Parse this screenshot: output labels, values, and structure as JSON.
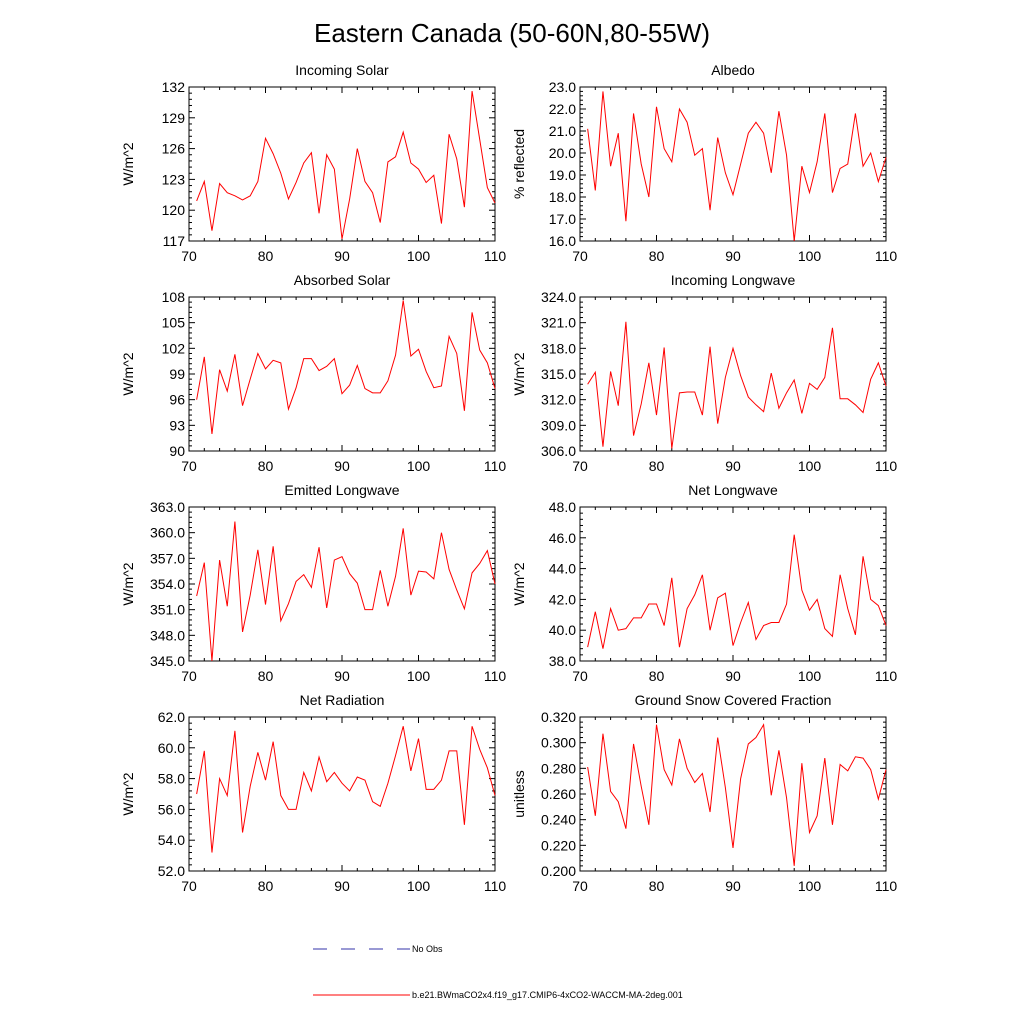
{
  "title": "Eastern Canada (50-60N,80-55W)",
  "colors": {
    "model": "#ff0000",
    "obs": "#3333aa",
    "axis": "#000000"
  },
  "legend": {
    "obs_label": "No Obs",
    "model_label": "b.e21.BWmaCO2x4.f19_g17.CMIP6-4xCO2-WACCM-MA-2deg.001"
  },
  "chart_data": [
    {
      "type": "line",
      "title": "Incoming Solar",
      "xlabel": "",
      "ylabel": "W/m^2",
      "xlim": [
        70,
        110
      ],
      "ylim": [
        117,
        132
      ],
      "xticks": [
        70,
        80,
        90,
        100,
        110
      ],
      "yticks": [
        117,
        120,
        123,
        126,
        129,
        132
      ],
      "ytick_labels": [
        "117",
        "120",
        "123",
        "126",
        "129",
        "132"
      ],
      "x": [
        71,
        72,
        73,
        74,
        75,
        76,
        77,
        78,
        79,
        80,
        81,
        82,
        83,
        84,
        85,
        86,
        87,
        88,
        89,
        90,
        91,
        92,
        93,
        94,
        95,
        96,
        97,
        98,
        99,
        100,
        101,
        102,
        103,
        104,
        105,
        106,
        107,
        108,
        109,
        110
      ],
      "series": [
        {
          "name": "b.e21.BWmaCO2x4.f19_g17.CMIP6-4xCO2-WACCM-MA-2deg.001",
          "values": [
            120.9,
            122.8,
            118.0,
            122.6,
            121.7,
            121.4,
            121.0,
            121.4,
            122.8,
            127.0,
            125.5,
            123.6,
            121.1,
            122.7,
            124.6,
            125.6,
            119.7,
            125.4,
            124.0,
            117.2,
            121.1,
            126.0,
            122.8,
            121.7,
            118.8,
            124.7,
            125.2,
            127.6,
            124.6,
            124.0,
            122.7,
            123.4,
            118.7,
            127.4,
            125.0,
            120.3,
            131.6,
            126.9,
            122.2,
            120.7
          ]
        }
      ]
    },
    {
      "type": "line",
      "title": "Albedo",
      "xlabel": "",
      "ylabel": "% reflected",
      "xlim": [
        70,
        110
      ],
      "ylim": [
        16,
        23
      ],
      "xticks": [
        70,
        80,
        90,
        100,
        110
      ],
      "yticks": [
        16,
        17,
        18,
        19,
        20,
        21,
        22,
        23
      ],
      "ytick_labels": [
        "16.0",
        "17.0",
        "18.0",
        "19.0",
        "20.0",
        "21.0",
        "22.0",
        "23.0"
      ],
      "x": [
        71,
        72,
        73,
        74,
        75,
        76,
        77,
        78,
        79,
        80,
        81,
        82,
        83,
        84,
        85,
        86,
        87,
        88,
        89,
        90,
        91,
        92,
        93,
        94,
        95,
        96,
        97,
        98,
        99,
        100,
        101,
        102,
        103,
        104,
        105,
        106,
        107,
        108,
        109,
        110
      ],
      "series": [
        {
          "name": "b.e21.BWmaCO2x4.f19_g17.CMIP6-4xCO2-WACCM-MA-2deg.001",
          "values": [
            21.1,
            18.3,
            22.8,
            19.4,
            20.9,
            16.9,
            21.8,
            19.5,
            18.0,
            22.1,
            20.2,
            19.6,
            22.0,
            21.4,
            19.9,
            20.2,
            17.4,
            20.7,
            19.1,
            18.1,
            19.5,
            20.9,
            21.4,
            20.9,
            19.1,
            21.9,
            19.9,
            16.0,
            19.4,
            18.2,
            19.6,
            21.8,
            18.2,
            19.3,
            19.5,
            21.8,
            19.4,
            20.0,
            18.7,
            19.8
          ]
        }
      ]
    },
    {
      "type": "line",
      "title": "Absorbed Solar",
      "xlabel": "",
      "ylabel": "W/m^2",
      "xlim": [
        70,
        110
      ],
      "ylim": [
        90,
        108
      ],
      "xticks": [
        70,
        80,
        90,
        100,
        110
      ],
      "yticks": [
        90,
        93,
        96,
        99,
        102,
        105,
        108
      ],
      "ytick_labels": [
        "90",
        "93",
        "96",
        "99",
        "102",
        "105",
        "108"
      ],
      "x": [
        71,
        72,
        73,
        74,
        75,
        76,
        77,
        78,
        79,
        80,
        81,
        82,
        83,
        84,
        85,
        86,
        87,
        88,
        89,
        90,
        91,
        92,
        93,
        94,
        95,
        96,
        97,
        98,
        99,
        100,
        101,
        102,
        103,
        104,
        105,
        106,
        107,
        108,
        109,
        110
      ],
      "series": [
        {
          "name": "b.e21.BWmaCO2x4.f19_g17.CMIP6-4xCO2-WACCM-MA-2deg.001",
          "values": [
            96.0,
            101.0,
            92.0,
            99.5,
            97.0,
            101.3,
            95.3,
            98.4,
            101.4,
            99.6,
            100.6,
            100.3,
            94.9,
            97.4,
            100.8,
            100.8,
            99.4,
            99.9,
            100.8,
            96.7,
            97.7,
            100.0,
            97.3,
            96.8,
            96.8,
            98.2,
            101.2,
            107.6,
            101.1,
            101.9,
            99.3,
            97.4,
            97.6,
            103.4,
            101.4,
            94.7,
            106.2,
            101.8,
            100.3,
            97.3
          ]
        }
      ]
    },
    {
      "type": "line",
      "title": "Incoming Longwave",
      "xlabel": "",
      "ylabel": "W/m^2",
      "xlim": [
        70,
        110
      ],
      "ylim": [
        306,
        324
      ],
      "xticks": [
        70,
        80,
        90,
        100,
        110
      ],
      "yticks": [
        306,
        309,
        312,
        315,
        318,
        321,
        324
      ],
      "ytick_labels": [
        "306.0",
        "309.0",
        "312.0",
        "315.0",
        "318.0",
        "321.0",
        "324.0"
      ],
      "x": [
        71,
        72,
        73,
        74,
        75,
        76,
        77,
        78,
        79,
        80,
        81,
        82,
        83,
        84,
        85,
        86,
        87,
        88,
        89,
        90,
        91,
        92,
        93,
        94,
        95,
        96,
        97,
        98,
        99,
        100,
        101,
        102,
        103,
        104,
        105,
        106,
        107,
        108,
        109,
        110
      ],
      "series": [
        {
          "name": "b.e21.BWmaCO2x4.f19_g17.CMIP6-4xCO2-WACCM-MA-2deg.001",
          "values": [
            313.8,
            315.2,
            306.5,
            315.3,
            311.3,
            321.1,
            307.8,
            311.5,
            316.3,
            310.2,
            318.1,
            306.3,
            312.8,
            312.9,
            312.9,
            310.2,
            318.2,
            309.2,
            314.6,
            318.0,
            314.8,
            312.3,
            311.4,
            310.6,
            315.1,
            311.0,
            312.8,
            314.3,
            310.4,
            313.9,
            313.2,
            314.6,
            320.4,
            312.1,
            312.1,
            311.4,
            310.5,
            314.4,
            316.3,
            313.6
          ]
        }
      ]
    },
    {
      "type": "line",
      "title": "Emitted Longwave",
      "xlabel": "",
      "ylabel": "W/m^2",
      "xlim": [
        70,
        110
      ],
      "ylim": [
        345,
        363
      ],
      "xticks": [
        70,
        80,
        90,
        100,
        110
      ],
      "yticks": [
        345,
        348,
        351,
        354,
        357,
        360,
        363
      ],
      "ytick_labels": [
        "345.0",
        "348.0",
        "351.0",
        "354.0",
        "357.0",
        "360.0",
        "363.0"
      ],
      "x": [
        71,
        72,
        73,
        74,
        75,
        76,
        77,
        78,
        79,
        80,
        81,
        82,
        83,
        84,
        85,
        86,
        87,
        88,
        89,
        90,
        91,
        92,
        93,
        94,
        95,
        96,
        97,
        98,
        99,
        100,
        101,
        102,
        103,
        104,
        105,
        106,
        107,
        108,
        109,
        110
      ],
      "series": [
        {
          "name": "b.e21.BWmaCO2x4.f19_g17.CMIP6-4xCO2-WACCM-MA-2deg.001",
          "values": [
            352.6,
            356.5,
            345.0,
            356.8,
            351.4,
            361.3,
            348.4,
            352.7,
            358.0,
            351.6,
            358.4,
            349.7,
            351.7,
            354.3,
            355.1,
            353.6,
            358.3,
            351.2,
            356.8,
            357.2,
            355.2,
            354.1,
            351.0,
            351.0,
            355.6,
            351.4,
            354.9,
            360.5,
            352.7,
            355.5,
            355.4,
            354.6,
            360.0,
            355.7,
            353.3,
            351.1,
            355.3,
            356.4,
            357.9,
            354.0
          ]
        }
      ]
    },
    {
      "type": "line",
      "title": "Net Longwave",
      "xlabel": "",
      "ylabel": "W/m^2",
      "xlim": [
        70,
        110
      ],
      "ylim": [
        38,
        48
      ],
      "xticks": [
        70,
        80,
        90,
        100,
        110
      ],
      "yticks": [
        38,
        40,
        42,
        44,
        46,
        48
      ],
      "ytick_labels": [
        "38.0",
        "40.0",
        "42.0",
        "44.0",
        "46.0",
        "48.0"
      ],
      "x": [
        71,
        72,
        73,
        74,
        75,
        76,
        77,
        78,
        79,
        80,
        81,
        82,
        83,
        84,
        85,
        86,
        87,
        88,
        89,
        90,
        91,
        92,
        93,
        94,
        95,
        96,
        97,
        98,
        99,
        100,
        101,
        102,
        103,
        104,
        105,
        106,
        107,
        108,
        109,
        110
      ],
      "series": [
        {
          "name": "b.e21.BWmaCO2x4.f19_g17.CMIP6-4xCO2-WACCM-MA-2deg.001",
          "values": [
            38.9,
            41.2,
            38.8,
            41.4,
            40.0,
            40.1,
            40.8,
            40.8,
            41.7,
            41.7,
            40.3,
            43.4,
            38.9,
            41.4,
            42.3,
            43.6,
            40.0,
            42.1,
            42.4,
            39.0,
            40.5,
            41.8,
            39.4,
            40.3,
            40.5,
            40.5,
            41.7,
            46.2,
            42.6,
            41.3,
            42.0,
            40.1,
            39.6,
            43.6,
            41.4,
            39.7,
            44.8,
            42.0,
            41.6,
            40.3
          ]
        }
      ]
    },
    {
      "type": "line",
      "title": "Net Radiation",
      "xlabel": "",
      "ylabel": "W/m^2",
      "xlim": [
        70,
        110
      ],
      "ylim": [
        52,
        62
      ],
      "xticks": [
        70,
        80,
        90,
        100,
        110
      ],
      "yticks": [
        52,
        54,
        56,
        58,
        60,
        62
      ],
      "ytick_labels": [
        "52.0",
        "54.0",
        "56.0",
        "58.0",
        "60.0",
        "62.0"
      ],
      "x": [
        71,
        72,
        73,
        74,
        75,
        76,
        77,
        78,
        79,
        80,
        81,
        82,
        83,
        84,
        85,
        86,
        87,
        88,
        89,
        90,
        91,
        92,
        93,
        94,
        95,
        96,
        97,
        98,
        99,
        100,
        101,
        102,
        103,
        104,
        105,
        106,
        107,
        108,
        109,
        110
      ],
      "series": [
        {
          "name": "b.e21.BWmaCO2x4.f19_g17.CMIP6-4xCO2-WACCM-MA-2deg.001",
          "values": [
            57.0,
            59.8,
            53.2,
            58.0,
            56.9,
            61.1,
            54.5,
            57.5,
            59.7,
            57.9,
            60.4,
            56.9,
            56.0,
            56.0,
            58.4,
            57.2,
            59.4,
            57.8,
            58.4,
            57.7,
            57.2,
            58.1,
            57.9,
            56.5,
            56.2,
            57.7,
            59.5,
            61.4,
            58.5,
            60.6,
            57.3,
            57.3,
            57.9,
            59.8,
            59.8,
            55.0,
            61.4,
            59.9,
            58.7,
            56.9
          ]
        }
      ]
    },
    {
      "type": "line",
      "title": "Ground Snow Covered Fraction",
      "xlabel": "",
      "ylabel": "unitless",
      "xlim": [
        70,
        110
      ],
      "ylim": [
        0.2,
        0.32
      ],
      "xticks": [
        70,
        80,
        90,
        100,
        110
      ],
      "yticks": [
        0.2,
        0.22,
        0.24,
        0.26,
        0.28,
        0.3,
        0.32
      ],
      "ytick_labels": [
        "0.200",
        "0.220",
        "0.240",
        "0.260",
        "0.280",
        "0.300",
        "0.320"
      ],
      "x": [
        71,
        72,
        73,
        74,
        75,
        76,
        77,
        78,
        79,
        80,
        81,
        82,
        83,
        84,
        85,
        86,
        87,
        88,
        89,
        90,
        91,
        92,
        93,
        94,
        95,
        96,
        97,
        98,
        99,
        100,
        101,
        102,
        103,
        104,
        105,
        106,
        107,
        108,
        109,
        110
      ],
      "series": [
        {
          "name": "b.e21.BWmaCO2x4.f19_g17.CMIP6-4xCO2-WACCM-MA-2deg.001",
          "values": [
            0.281,
            0.243,
            0.307,
            0.262,
            0.254,
            0.233,
            0.299,
            0.266,
            0.236,
            0.314,
            0.279,
            0.267,
            0.303,
            0.28,
            0.269,
            0.276,
            0.246,
            0.304,
            0.265,
            0.218,
            0.272,
            0.299,
            0.304,
            0.314,
            0.259,
            0.294,
            0.257,
            0.204,
            0.284,
            0.23,
            0.243,
            0.288,
            0.236,
            0.283,
            0.278,
            0.289,
            0.288,
            0.279,
            0.256,
            0.279
          ]
        }
      ]
    }
  ]
}
